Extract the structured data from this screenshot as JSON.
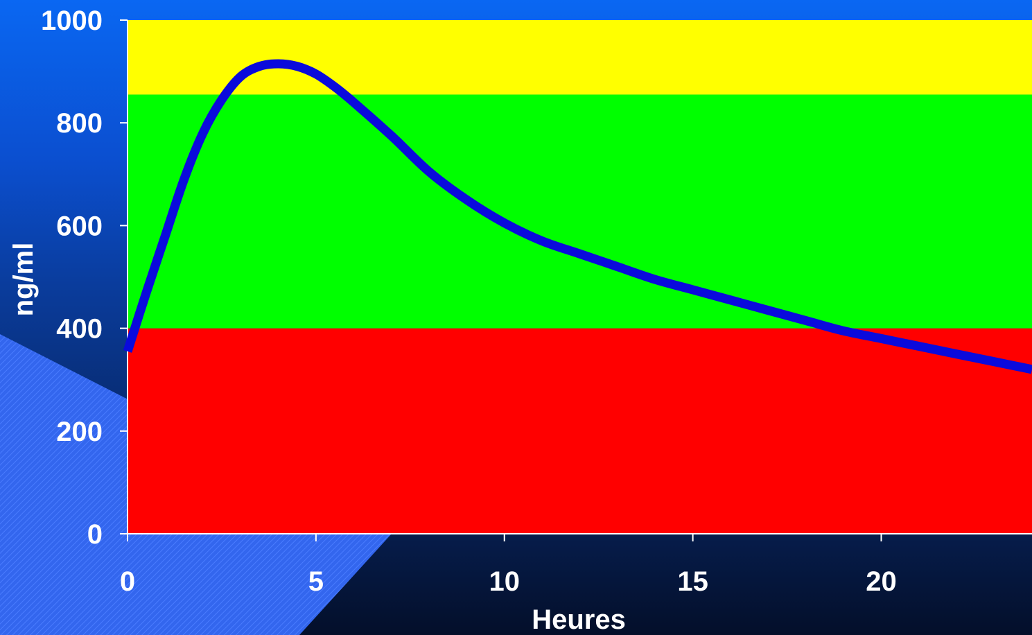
{
  "chart_data": {
    "type": "line",
    "title": "",
    "xlabel": "Heures",
    "ylabel": "ng/ml",
    "xlim": [
      0,
      24
    ],
    "ylim": [
      0,
      1000
    ],
    "x_ticks": [
      0,
      5,
      10,
      15,
      20
    ],
    "y_ticks": [
      0,
      200,
      400,
      600,
      800,
      1000
    ],
    "grid": false,
    "bands": [
      {
        "from": 0,
        "to": 400,
        "color": "#ff0000"
      },
      {
        "from": 400,
        "to": 855,
        "color": "#00ff00"
      },
      {
        "from": 855,
        "to": 1000,
        "color": "#ffff00"
      }
    ],
    "series": [
      {
        "color": "#0a0adc",
        "x": [
          0,
          0.5,
          1,
          1.5,
          2,
          2.5,
          3,
          3.5,
          4,
          4.5,
          5,
          5.5,
          6,
          7,
          8,
          9,
          10,
          11,
          12,
          13,
          14,
          15,
          16,
          17,
          18,
          19,
          20,
          21,
          22,
          23,
          24
        ],
        "y": [
          355,
          470,
          580,
          690,
          780,
          845,
          890,
          910,
          915,
          910,
          895,
          870,
          840,
          775,
          705,
          650,
          605,
          570,
          545,
          520,
          495,
          475,
          455,
          435,
          415,
          395,
          380,
          365,
          350,
          335,
          320
        ]
      }
    ]
  }
}
